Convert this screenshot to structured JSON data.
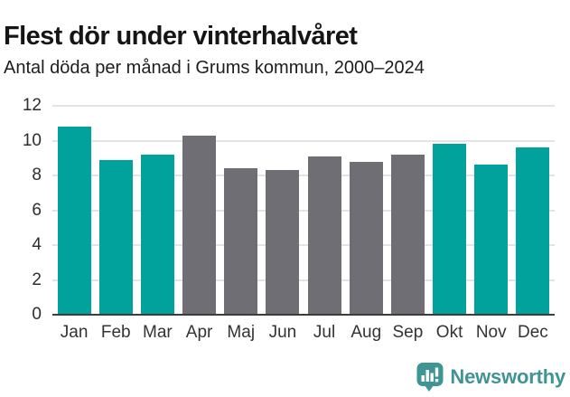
{
  "header": {
    "title": "Flest dör under vinterhalvåret",
    "subtitle": "Antal döda per månad i Grums kommun, 2000–2024"
  },
  "chart_data": {
    "type": "bar",
    "categories": [
      "Jan",
      "Feb",
      "Mar",
      "Apr",
      "Maj",
      "Jun",
      "Jul",
      "Aug",
      "Sep",
      "Okt",
      "Nov",
      "Dec"
    ],
    "values": [
      10.8,
      8.9,
      9.2,
      10.3,
      8.4,
      8.3,
      9.1,
      8.8,
      9.2,
      9.8,
      8.6,
      9.6
    ],
    "bar_roles": [
      "highlight",
      "highlight",
      "highlight",
      "default",
      "default",
      "default",
      "default",
      "default",
      "default",
      "highlight",
      "highlight",
      "highlight"
    ],
    "title": "Flest dör under vinterhalvåret",
    "subtitle": "Antal döda per månad i Grums kommun, 2000–2024",
    "xlabel": "",
    "ylabel": "",
    "ylim": [
      0,
      12
    ],
    "yticks": [
      0,
      2,
      4,
      6,
      8,
      10,
      12
    ],
    "grid": true,
    "legend": "none",
    "colors": {
      "highlight": "#00a29b",
      "default": "#6e6e74",
      "gridline": "#e4e4e4",
      "axis_line": "#3d3d3d"
    }
  },
  "footer": {
    "brand": "Newsworthy",
    "brand_color": "#3f9494",
    "logo_icon": "bar-chart-speech-bubble-icon"
  }
}
